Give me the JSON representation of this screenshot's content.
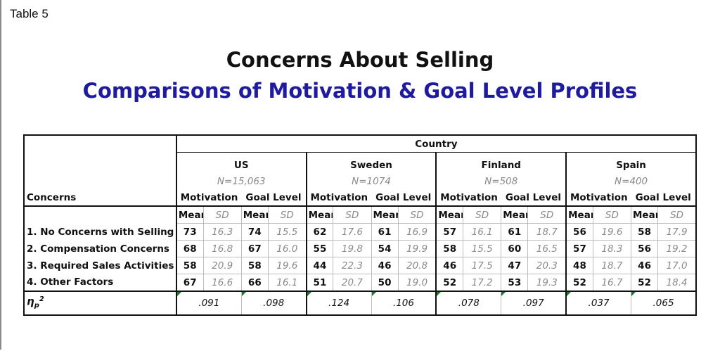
{
  "table_label": "Table 5",
  "title": "Concerns About Selling",
  "subtitle": "Comparisons of Motivation & Goal Level Profiles",
  "header": {
    "group": "Country",
    "row_label": "Concerns",
    "measures": {
      "motivation": "Motivation",
      "goal_level": "Goal Level"
    },
    "stats": {
      "mean": "Mean",
      "sd": "SD"
    },
    "countries": [
      {
        "name": "US",
        "n": "N=15,063"
      },
      {
        "name": "Sweden",
        "n": "N=1074"
      },
      {
        "name": "Finland",
        "n": "N=508"
      },
      {
        "name": "Spain",
        "n": "N=400"
      }
    ]
  },
  "rows": [
    {
      "label": "1. No Concerns with Selling",
      "cells": [
        "73",
        "16.3",
        "74",
        "15.5",
        "62",
        "17.6",
        "61",
        "16.9",
        "57",
        "16.1",
        "61",
        "18.7",
        "56",
        "19.6",
        "58",
        "17.9"
      ]
    },
    {
      "label": "2. Compensation Concerns",
      "cells": [
        "68",
        "16.8",
        "67",
        "16.0",
        "55",
        "19.8",
        "54",
        "19.9",
        "58",
        "15.5",
        "60",
        "16.5",
        "57",
        "18.3",
        "56",
        "19.2"
      ]
    },
    {
      "label": "3. Required Sales Activities",
      "cells": [
        "58",
        "20.9",
        "58",
        "19.6",
        "44",
        "22.3",
        "46",
        "20.8",
        "46",
        "17.5",
        "47",
        "20.3",
        "48",
        "18.7",
        "46",
        "17.0"
      ]
    },
    {
      "label": "4. Other Factors",
      "cells": [
        "67",
        "16.6",
        "66",
        "16.1",
        "51",
        "20.7",
        "50",
        "19.0",
        "52",
        "17.2",
        "53",
        "19.3",
        "52",
        "16.7",
        "52",
        "18.4"
      ]
    }
  ],
  "eta": {
    "symbol": "η",
    "subscript": "p",
    "superscript": "2",
    "values": [
      ".091",
      ".098",
      ".124",
      ".106",
      ".078",
      ".097",
      ".037",
      ".065"
    ]
  }
}
